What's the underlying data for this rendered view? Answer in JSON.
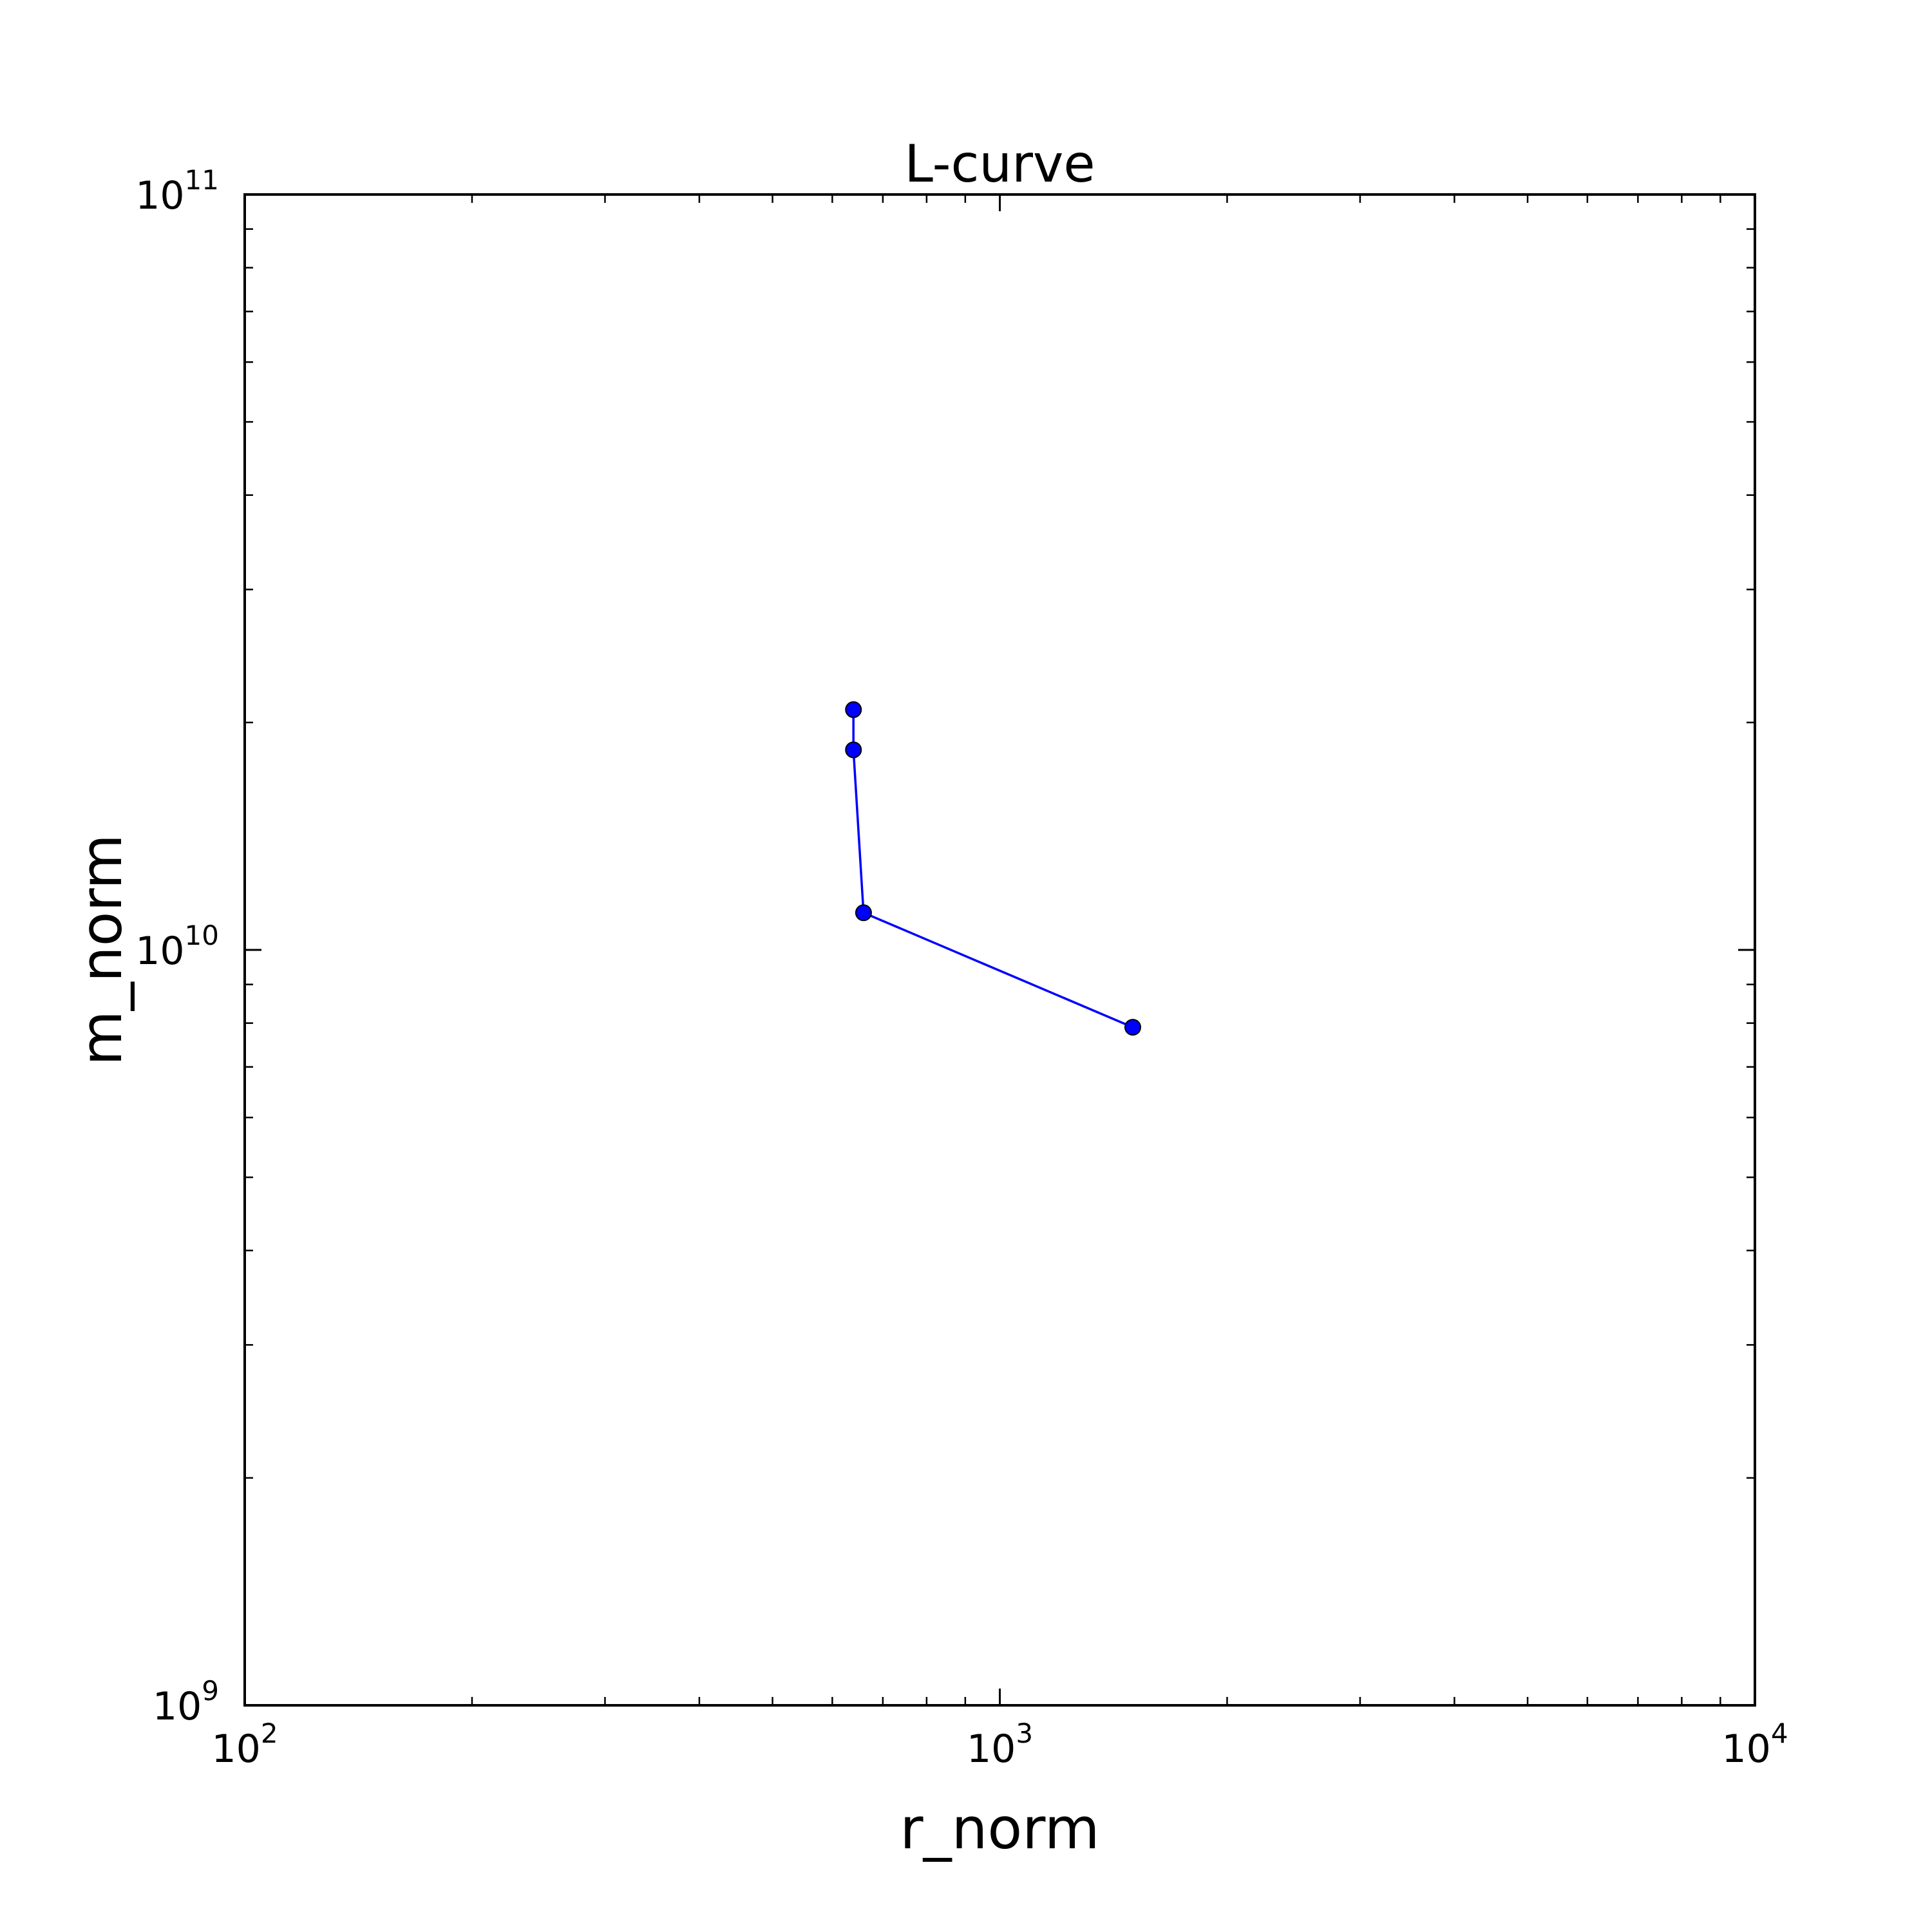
{
  "chart_data": {
    "type": "line",
    "title": "L-curve",
    "xlabel": "r_norm",
    "ylabel": "m_norm",
    "x_scale": "log",
    "y_scale": "log",
    "xlim": [
      100,
      10000
    ],
    "ylim": [
      1000000000,
      100000000000
    ],
    "grid": false,
    "x_major_ticks": [
      {
        "value": 100,
        "base": "10",
        "exp": "2"
      },
      {
        "value": 1000,
        "base": "10",
        "exp": "3"
      },
      {
        "value": 10000,
        "base": "10",
        "exp": "4"
      }
    ],
    "y_major_ticks": [
      {
        "value": 1000000000,
        "base": "10",
        "exp": "9"
      },
      {
        "value": 10000000000,
        "base": "10",
        "exp": "10"
      },
      {
        "value": 100000000000,
        "base": "10",
        "exp": "11"
      }
    ],
    "series": [
      {
        "color": "#0000ff",
        "marker": "circle",
        "points": [
          {
            "x": 640,
            "y": 20800000000
          },
          {
            "x": 640,
            "y": 18400000000
          },
          {
            "x": 660,
            "y": 11200000000
          },
          {
            "x": 1500,
            "y": 7900000000
          }
        ]
      }
    ]
  }
}
